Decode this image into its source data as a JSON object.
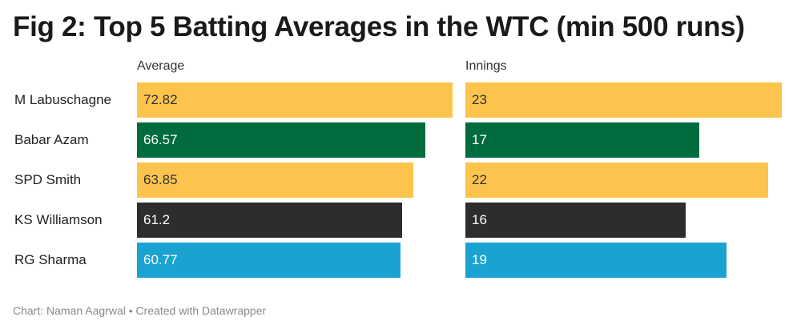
{
  "title": "Fig 2: Top 5 Batting Averages in the WTC (min 500 runs)",
  "footer": "Chart: Naman Aagrwal • Created with Datawrapper",
  "colors": {
    "gold": "#fcc44c",
    "green": "#006c3e",
    "dark": "#2d2d2d",
    "blue": "#1aa3d0"
  },
  "chart_data": {
    "type": "bar",
    "categories": [
      "M Labuschagne",
      "Babar Azam",
      "SPD Smith",
      "KS Williamson",
      "RG Sharma"
    ],
    "series": [
      {
        "name": "Average",
        "values": [
          72.82,
          66.57,
          63.85,
          61.2,
          60.77
        ],
        "labels": [
          "72.82",
          "66.57",
          "63.85",
          "61.2",
          "60.77"
        ]
      },
      {
        "name": "Innings",
        "values": [
          23,
          17,
          22,
          16,
          19
        ],
        "labels": [
          "23",
          "17",
          "22",
          "16",
          "19"
        ]
      }
    ],
    "bar_colors": [
      "#fcc44c",
      "#006c3e",
      "#fcc44c",
      "#2d2d2d",
      "#1aa3d0"
    ],
    "label_colors": [
      "#333333",
      "#ffffff",
      "#333333",
      "#ffffff",
      "#ffffff"
    ],
    "legend": "none",
    "grid": false
  }
}
